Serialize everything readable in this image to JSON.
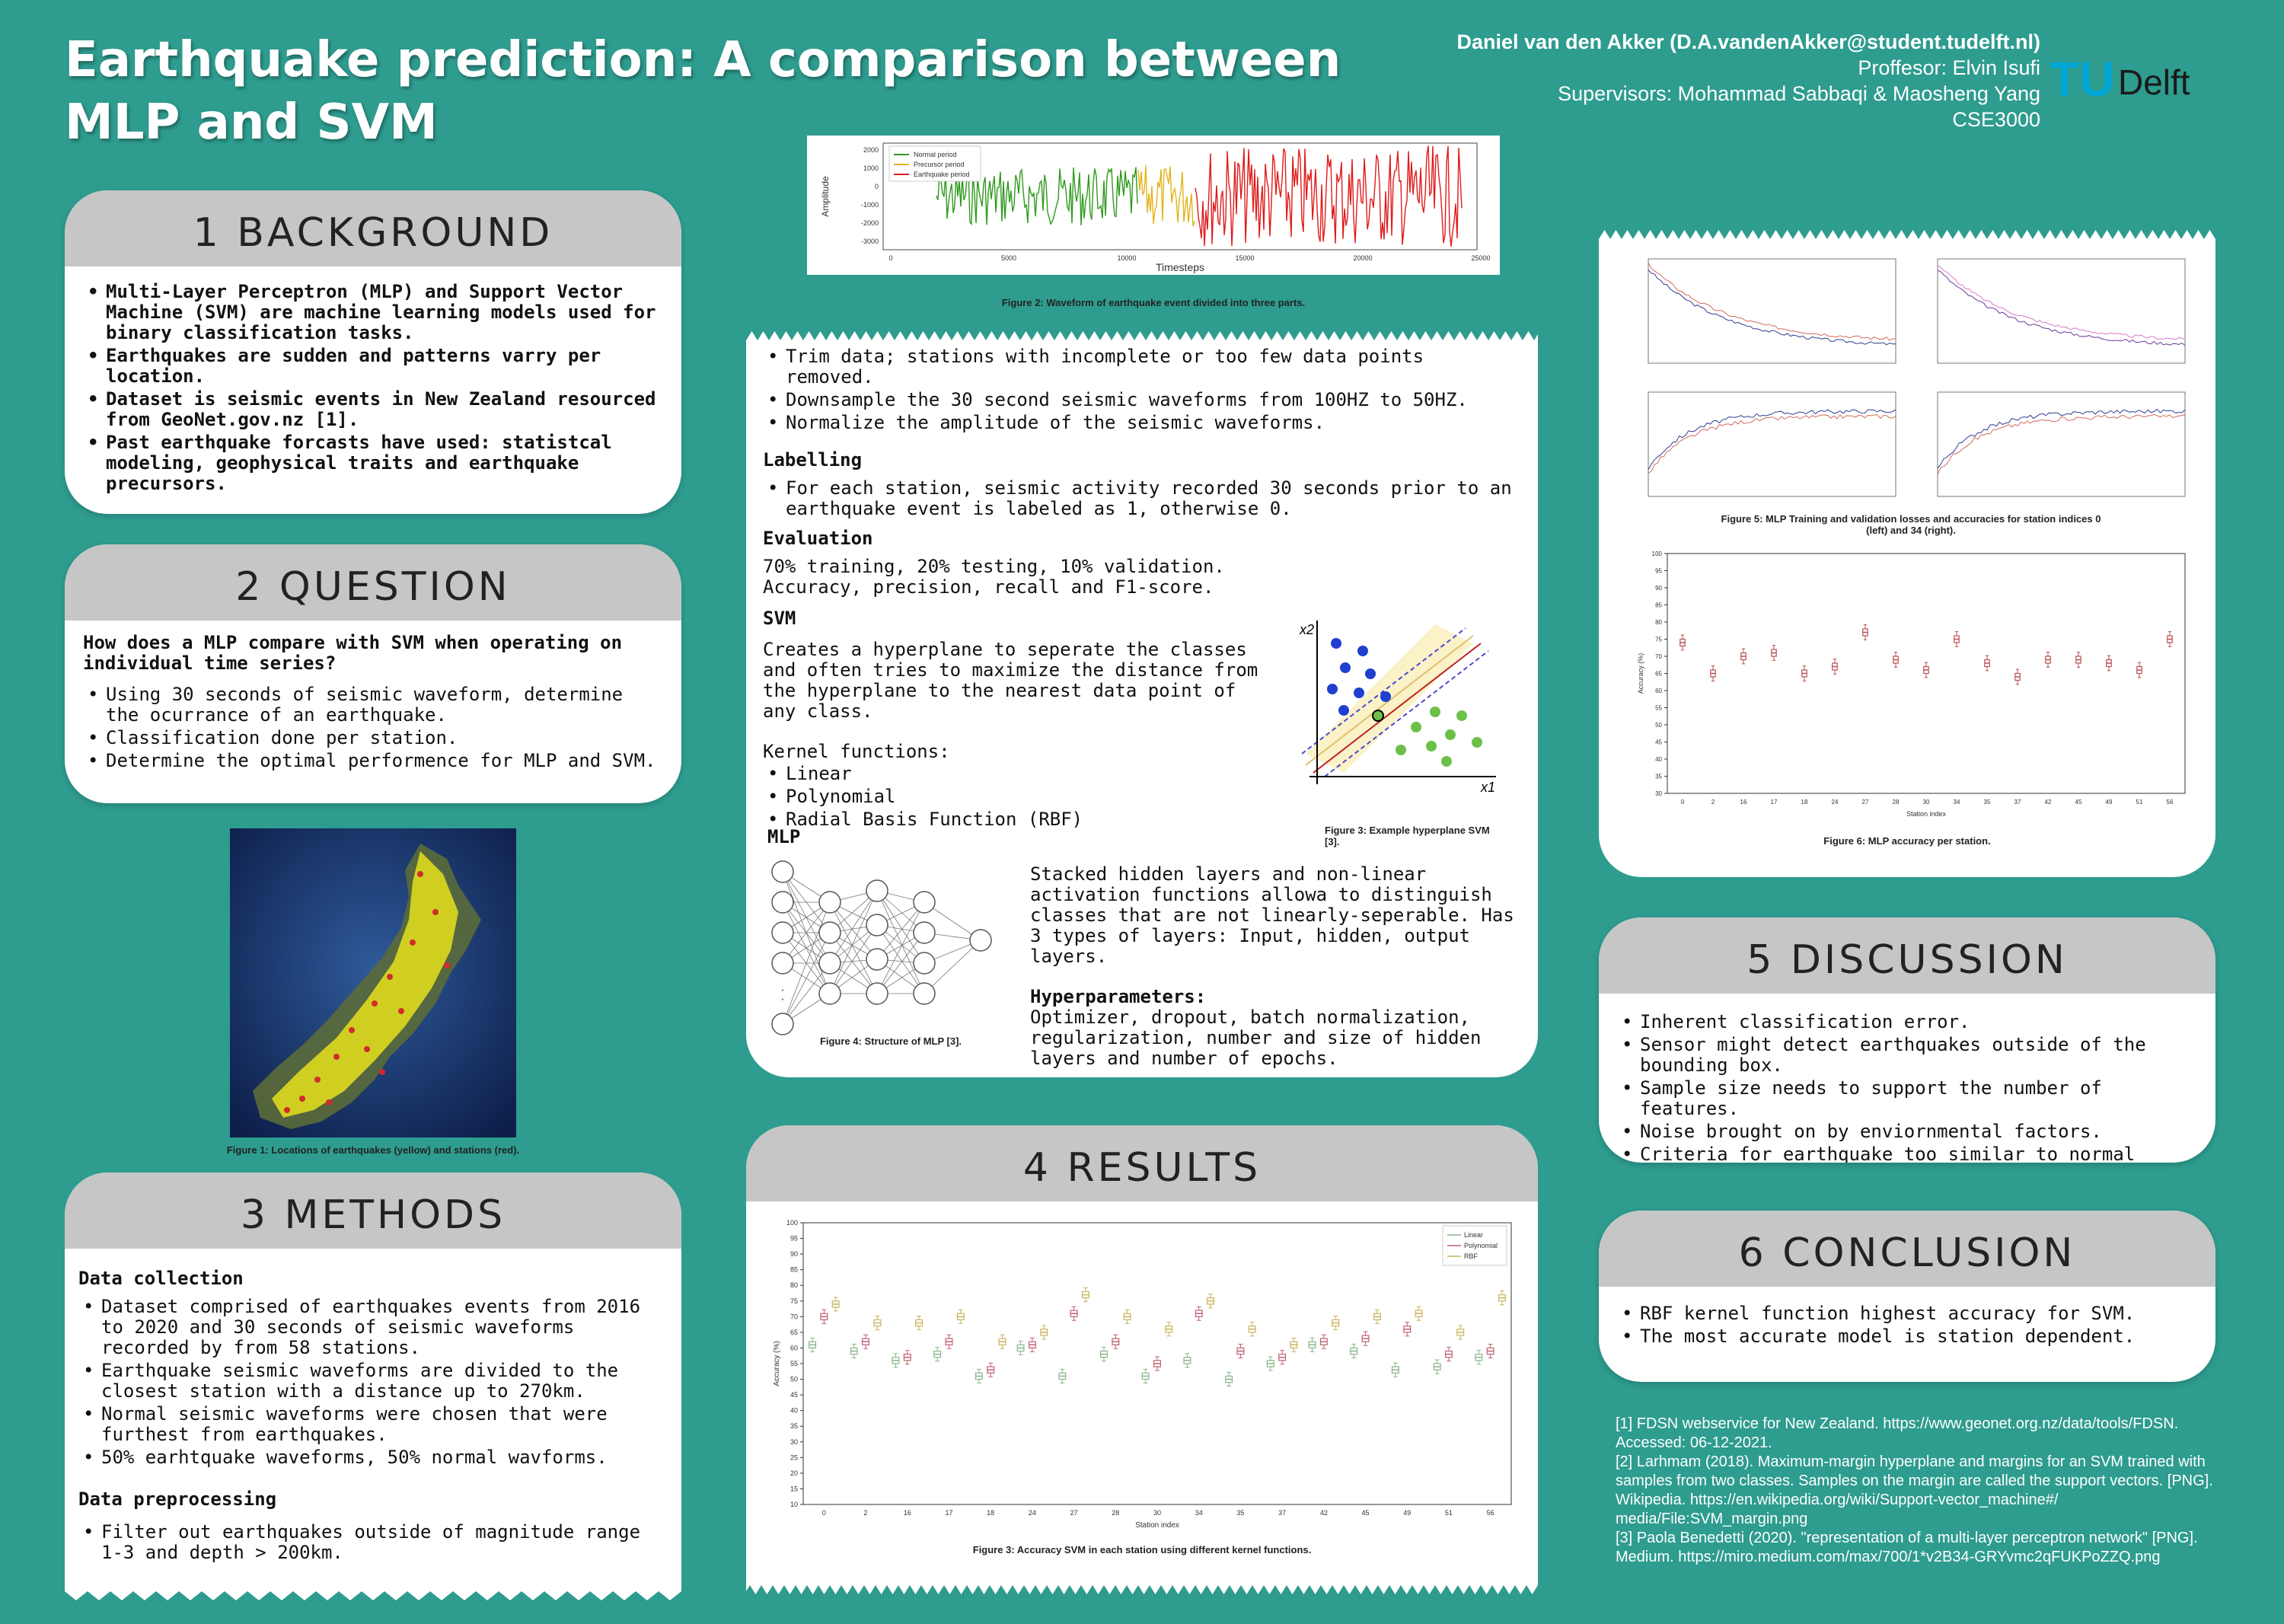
{
  "title": "Earthquake prediction: A comparison between MLP and SVM",
  "author": {
    "name": "Daniel van den Akker (D.A.vandenAkker@student.tudelft.nl)",
    "professor": "Proffesor: Elvin Isufi",
    "supervisors": "Supervisors: Mohammad Sabbaqi & Maosheng Yang",
    "course": "CSE3000"
  },
  "logo": {
    "tu": "TU",
    "delft": "Delft"
  },
  "background": {
    "heading": "1 BACKGROUND",
    "items": [
      "Multi-Layer Perceptron (MLP) and Support Vector Machine (SVM) are machine learning models used for binary classification tasks.",
      "Earthquakes are sudden and patterns varry per location.",
      "Dataset is seismic events in New Zealand resourced from GeoNet.gov.nz [1].",
      "Past earthquake forcasts have used: statistcal modeling, geophysical traits and earthquake precursors."
    ]
  },
  "question": {
    "heading": "2 QUESTION",
    "lead": "How does a MLP compare with SVM when operating on individual time series?",
    "items": [
      "Using 30 seconds of seismic waveform, determine the ocurrance of an earthquake.",
      "Classification done per station.",
      "Determine the optimal performence for MLP and SVM."
    ]
  },
  "figure1_caption": "Figure 1: Locations of earthquakes (yellow) and stations (red).",
  "methods": {
    "heading": "3 METHODS",
    "collection_title": "Data collection",
    "collection_items": [
      "Dataset comprised of earthquakes events from 2016 to 2020 and 30 seconds of seismic waveforms recorded by from 58 stations.",
      "Earthquake seismic waveforms are divided to the closest station with a distance up to 270km.",
      "Normal seismic waveforms were chosen that were furthest from earthquakes.",
      "50% earhtquake waveforms, 50% normal wavforms."
    ],
    "preprocessing_title": "Data preprocessing",
    "preprocessing_items": [
      "Filter out earthquakes outside of magnitude range 1-3 and depth > 200km."
    ]
  },
  "figure2": {
    "caption": "Figure 2: Waveform of earthquake event divided into three parts.",
    "legend": [
      "Normal period",
      "Precursor period",
      "Earthquake period"
    ],
    "xlabel": "Timesteps",
    "ylabel": "Amplitude",
    "xticks": [
      "0",
      "5000",
      "10000",
      "15000",
      "20000",
      "25000"
    ],
    "yticks": [
      "2000",
      "1000",
      "0",
      "-1000",
      "-2000",
      "-3000"
    ],
    "colors": {
      "normal": "#2e9a1c",
      "precursor": "#e3b31c",
      "earthquake": "#e01b1b"
    }
  },
  "middle": {
    "items_top": [
      "Trim data; stations with incomplete or too few data points removed.",
      "Downsample the 30 second seismic waveforms from 100HZ to 50HZ.",
      "Normalize the amplitude of the seismic waveforms."
    ],
    "labelling_title": "Labelling",
    "labelling_items": [
      "For each station, seismic activity recorded 30 seconds prior to an earthquake event is labeled as 1, otherwise 0."
    ],
    "evaluation_title": "Evaluation",
    "evaluation_lines": [
      "70% training, 20% testing, 10% validation.",
      "Accuracy, precision, recall and F1-score."
    ],
    "svm_title": "SVM",
    "svm_text": "Creates a hyperplane to seperate the classes and often tries to maximize the distance from the hyperplane to the nearest data point of any class.",
    "kernel_title": "Kernel functions:",
    "kernel_items": [
      "Linear",
      "Polynomial",
      "Radial Basis Function (RBF)"
    ],
    "figure3_caption": "Figure 3: Example hyperplane SVM [3].",
    "svm_axis_x": "x1",
    "svm_axis_y": "x2",
    "mlp_title": "MLP",
    "mlp_text": "Stacked hidden layers and non-linear activation functions allowa to distinguish classes that are not linearly-seperable. Has 3 types of layers: Input, hidden, output layers.",
    "hyper_title": "Hyperparameters:",
    "hyper_text": "Optimizer, dropout, batch normalization, regularization, number and size of hidden layers and number of epochs.",
    "figure4_caption": "Figure 4: Structure of MLP [3]."
  },
  "results": {
    "heading": "4 RESULTS",
    "caption": "Figure 3: Accuracy SVM in each station using different kernel functions.",
    "xlabel": "Station index",
    "ylabel": "Accuracy (%)"
  },
  "figure5_caption": "Figure 5: MLP Training and validation losses and accuracies for station indices 0 (left) and 34 (right).",
  "figure6": {
    "caption": "Figure 6: MLP accuracy per station.",
    "xlabel": "Station index",
    "ylabel": "Accuracy (%)"
  },
  "discussion": {
    "heading": "5 DISCUSSION",
    "items": [
      "Inherent classification error.",
      "Sensor might detect earthquakes outside of the bounding box.",
      "Sample size needs to support the number of features.",
      "Noise brought on by enviornmental factors.",
      "Criteria for earthquake too similar to normal activity."
    ]
  },
  "conclusion": {
    "heading": "6 CONCLUSION",
    "items": [
      "RBF kernel function highest accuracy for SVM.",
      "The most accurate model is station dependent."
    ]
  },
  "references": [
    "[1] FDSN webservice for New Zealand. https://www.geonet.org.nz/data/tools/FDSN. Accessed: 06-12-2021.",
    "[2] Larhmam (2018). Maximum-margin hyperplane and margins for an SVM trained with samples from two classes. Samples on the margin are called the support vectors. [PNG]. Wikipedia. https://en.wikipedia.org/wiki/Support-vector_machine#/ media/File:SVM_margin.png",
    "[3] Paola Benedetti (2020). \"representation of a multi-layer perceptron network\" [PNG]. Medium. https://miro.medium.com/max/700/1*v2B34-GRYvmc2qFUKPoZZQ.png"
  ],
  "chart_data": [
    {
      "type": "box",
      "title": "",
      "xlabel": "Station index",
      "ylabel": "Accuracy (%)",
      "ylim": [
        10,
        100
      ],
      "yticks": [
        10,
        15,
        20,
        25,
        30,
        35,
        40,
        45,
        50,
        55,
        60,
        65,
        70,
        75,
        80,
        85,
        90,
        95,
        100
      ],
      "categories": [
        "0",
        "2",
        "16",
        "17",
        "18",
        "24",
        "27",
        "28",
        "30",
        "34",
        "35",
        "37",
        "42",
        "45",
        "49",
        "51",
        "56"
      ],
      "legend": [
        "Linear",
        "Polynomial",
        "RBF"
      ],
      "series": [
        {
          "name": "Linear",
          "color": "#8ab58a",
          "values": [
            61,
            59,
            56,
            58,
            51,
            60,
            51,
            58,
            51,
            56,
            50,
            55,
            61,
            59,
            53,
            54,
            57
          ]
        },
        {
          "name": "Polynomial",
          "color": "#c06070",
          "values": [
            70,
            62,
            57,
            62,
            53,
            61,
            71,
            62,
            55,
            71,
            59,
            57,
            62,
            63,
            66,
            58,
            59
          ]
        },
        {
          "name": "RBF",
          "color": "#c9b35a",
          "values": [
            74,
            68,
            68,
            70,
            62,
            65,
            77,
            70,
            66,
            75,
            66,
            61,
            68,
            70,
            71,
            65,
            76
          ]
        }
      ]
    },
    {
      "type": "box",
      "title": "",
      "xlabel": "Station index",
      "ylabel": "Accuracy (%)",
      "ylim": [
        30,
        100
      ],
      "yticks": [
        30,
        35,
        40,
        45,
        50,
        55,
        60,
        65,
        70,
        75,
        80,
        85,
        90,
        95,
        100
      ],
      "categories": [
        "0",
        "2",
        "16",
        "17",
        "18",
        "24",
        "27",
        "28",
        "30",
        "34",
        "35",
        "37",
        "42",
        "45",
        "49",
        "51",
        "56"
      ],
      "series": [
        {
          "name": "MLP",
          "color": "#b85050",
          "values": [
            74,
            65,
            70,
            71,
            65,
            67,
            77,
            69,
            66,
            75,
            68,
            64,
            69,
            69,
            68,
            66,
            75
          ]
        }
      ]
    }
  ]
}
